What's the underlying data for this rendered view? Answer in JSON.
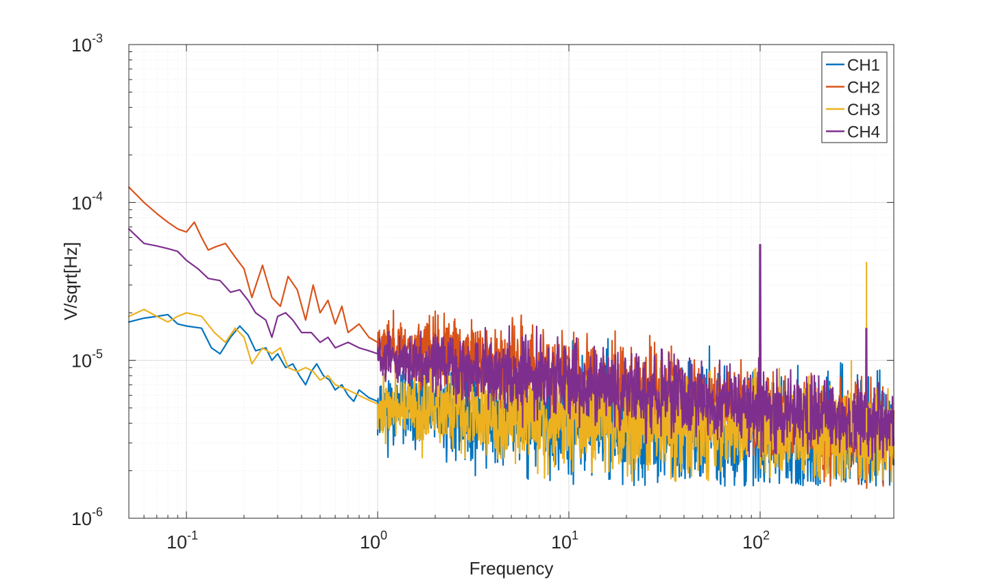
{
  "chart_data": {
    "type": "line",
    "title": "",
    "xlabel": "Frequency",
    "ylabel": "V/sqrt[Hz]",
    "xscale": "log",
    "yscale": "log",
    "xlim": [
      0.05,
      500
    ],
    "ylim": [
      1e-06,
      0.001
    ],
    "grid": true,
    "minor_grid": true,
    "legend_position": "top-right",
    "x_ticks": [
      {
        "value": 0.1,
        "base": "10",
        "exp": "-1"
      },
      {
        "value": 1,
        "base": "10",
        "exp": "0"
      },
      {
        "value": 10,
        "base": "10",
        "exp": "1"
      },
      {
        "value": 100,
        "base": "10",
        "exp": "2"
      }
    ],
    "y_ticks": [
      {
        "value": 1e-06,
        "base": "10",
        "exp": "-6"
      },
      {
        "value": 1e-05,
        "base": "10",
        "exp": "-5"
      },
      {
        "value": 0.0001,
        "base": "10",
        "exp": "-4"
      },
      {
        "value": 0.001,
        "base": "10",
        "exp": "-3"
      }
    ],
    "series": [
      {
        "name": "CH1",
        "color": "#0072BD",
        "points": [
          [
            0.05,
            1.75e-05
          ],
          [
            0.06,
            1.85e-05
          ],
          [
            0.07,
            1.9e-05
          ],
          [
            0.08,
            1.95e-05
          ],
          [
            0.09,
            1.7e-05
          ],
          [
            0.1,
            1.65e-05
          ],
          [
            0.12,
            1.6e-05
          ],
          [
            0.135,
            1.2e-05
          ],
          [
            0.15,
            1.1e-05
          ],
          [
            0.17,
            1.4e-05
          ],
          [
            0.19,
            1.65e-05
          ],
          [
            0.21,
            1.45e-05
          ],
          [
            0.23,
            1.15e-05
          ],
          [
            0.26,
            1.2e-05
          ],
          [
            0.28,
            1e-05
          ],
          [
            0.3,
            1.1e-05
          ],
          [
            0.33,
            9e-06
          ],
          [
            0.36,
            9.5e-06
          ],
          [
            0.39,
            8e-06
          ],
          [
            0.42,
            7e-06
          ],
          [
            0.45,
            8.5e-06
          ],
          [
            0.48,
            9.5e-06
          ],
          [
            0.52,
            8e-06
          ],
          [
            0.56,
            7.5e-06
          ],
          [
            0.6,
            6.5e-06
          ],
          [
            0.65,
            7e-06
          ],
          [
            0.7,
            6e-06
          ],
          [
            0.75,
            5.5e-06
          ],
          [
            0.8,
            6.5e-06
          ],
          [
            0.9,
            5.8e-06
          ],
          [
            1.0,
            5.5e-06
          ]
        ],
        "noise": {
          "from": 1.0,
          "to": 500,
          "center_start": 5e-06,
          "center_end": 3e-06,
          "spread": 0.45,
          "min": 1.6e-06
        }
      },
      {
        "name": "CH2",
        "color": "#D95319",
        "points": [
          [
            0.05,
            0.000125
          ],
          [
            0.06,
            0.0001
          ],
          [
            0.07,
            8.5e-05
          ],
          [
            0.08,
            7.5e-05
          ],
          [
            0.09,
            6.8e-05
          ],
          [
            0.1,
            6.5e-05
          ],
          [
            0.11,
            7.5e-05
          ],
          [
            0.12,
            6e-05
          ],
          [
            0.13,
            5e-05
          ],
          [
            0.14,
            5.2e-05
          ],
          [
            0.16,
            5.5e-05
          ],
          [
            0.18,
            4.5e-05
          ],
          [
            0.2,
            3.8e-05
          ],
          [
            0.22,
            2.5e-05
          ],
          [
            0.25,
            4e-05
          ],
          [
            0.28,
            2.5e-05
          ],
          [
            0.31,
            2.2e-05
          ],
          [
            0.34,
            3.4e-05
          ],
          [
            0.38,
            2.8e-05
          ],
          [
            0.42,
            1.8e-05
          ],
          [
            0.46,
            3e-05
          ],
          [
            0.5,
            2e-05
          ],
          [
            0.55,
            2.4e-05
          ],
          [
            0.6,
            1.7e-05
          ],
          [
            0.65,
            2.2e-05
          ],
          [
            0.7,
            1.5e-05
          ],
          [
            0.8,
            1.7e-05
          ],
          [
            0.9,
            1.4e-05
          ],
          [
            1.0,
            1.3e-05
          ]
        ],
        "noise": {
          "from": 1.0,
          "to": 500,
          "center_start": 1.3e-05,
          "center_end": 3.4e-06,
          "spread": 0.35,
          "min": 1.2e-06
        }
      },
      {
        "name": "CH3",
        "color": "#EDB120",
        "points": [
          [
            0.05,
            1.9e-05
          ],
          [
            0.06,
            2.1e-05
          ],
          [
            0.07,
            1.9e-05
          ],
          [
            0.08,
            1.75e-05
          ],
          [
            0.09,
            1.9e-05
          ],
          [
            0.1,
            2e-05
          ],
          [
            0.12,
            1.9e-05
          ],
          [
            0.14,
            1.5e-05
          ],
          [
            0.16,
            1.3e-05
          ],
          [
            0.18,
            1.6e-05
          ],
          [
            0.2,
            1.4e-05
          ],
          [
            0.22,
            9.5e-06
          ],
          [
            0.25,
            1.2e-05
          ],
          [
            0.28,
            1.1e-05
          ],
          [
            0.31,
            1.2e-05
          ],
          [
            0.34,
            9e-06
          ],
          [
            0.38,
            8.5e-06
          ],
          [
            0.42,
            9e-06
          ],
          [
            0.46,
            8.5e-06
          ],
          [
            0.5,
            7.5e-06
          ],
          [
            0.55,
            8e-06
          ],
          [
            0.6,
            7e-06
          ],
          [
            0.7,
            6.5e-06
          ],
          [
            0.8,
            6e-06
          ],
          [
            0.9,
            5.6e-06
          ],
          [
            1.0,
            5.3e-06
          ]
        ],
        "noise": {
          "from": 1.0,
          "to": 500,
          "center_start": 5e-06,
          "center_end": 3.2e-06,
          "spread": 0.4,
          "min": 1.7e-06
        }
      },
      {
        "name": "CH4",
        "color": "#7E2F8E",
        "points": [
          [
            0.05,
            6.8e-05
          ],
          [
            0.06,
            5.5e-05
          ],
          [
            0.07,
            5.3e-05
          ],
          [
            0.08,
            5.1e-05
          ],
          [
            0.09,
            4.9e-05
          ],
          [
            0.1,
            4.3e-05
          ],
          [
            0.115,
            3.8e-05
          ],
          [
            0.13,
            3.3e-05
          ],
          [
            0.15,
            3.2e-05
          ],
          [
            0.17,
            2.7e-05
          ],
          [
            0.19,
            2.8e-05
          ],
          [
            0.21,
            2.4e-05
          ],
          [
            0.23,
            2e-05
          ],
          [
            0.26,
            1.8e-05
          ],
          [
            0.28,
            1.4e-05
          ],
          [
            0.3,
            1.9e-05
          ],
          [
            0.33,
            2e-05
          ],
          [
            0.36,
            1.8e-05
          ],
          [
            0.4,
            1.5e-05
          ],
          [
            0.45,
            1.5e-05
          ],
          [
            0.5,
            1.3e-05
          ],
          [
            0.55,
            1.4e-05
          ],
          [
            0.6,
            1.2e-05
          ],
          [
            0.7,
            1.3e-05
          ],
          [
            0.8,
            1.2e-05
          ],
          [
            0.9,
            1.15e-05
          ],
          [
            1.0,
            1.1e-05
          ]
        ],
        "noise": {
          "from": 1.0,
          "to": 500,
          "center_start": 1.05e-05,
          "center_end": 3.8e-06,
          "spread": 0.3,
          "min": 2.3e-06
        },
        "spikes": [
          [
            100,
            5.4e-05
          ],
          [
            360,
            1.6e-05
          ]
        ]
      }
    ],
    "ch3_spikes": [
      [
        360,
        4.2e-05
      ],
      [
        300,
        1e-05
      ],
      [
        180,
        8e-06
      ]
    ]
  }
}
